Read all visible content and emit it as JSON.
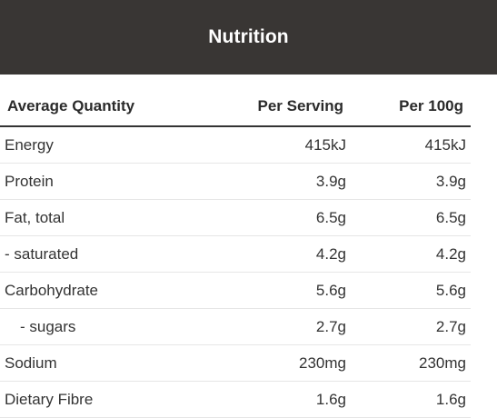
{
  "header": {
    "title": "Nutrition"
  },
  "columns": {
    "name": "Average Quantity",
    "per_serving": "Per Serving",
    "per_100g": "Per 100g"
  },
  "rows": [
    {
      "name": "Energy",
      "per_serving": "415kJ",
      "per_100g": "415kJ"
    },
    {
      "name": "Protein",
      "per_serving": "3.9g",
      "per_100g": "3.9g"
    },
    {
      "name": "Fat, total",
      "per_serving": "6.5g",
      "per_100g": "6.5g"
    },
    {
      "name": "- saturated",
      "per_serving": "4.2g",
      "per_100g": "4.2g"
    },
    {
      "name": "Carbohydrate",
      "per_serving": "5.6g",
      "per_100g": "5.6g"
    },
    {
      "name": "- sugars",
      "per_serving": "2.7g",
      "per_100g": "2.7g"
    },
    {
      "name": "Sodium",
      "per_serving": "230mg",
      "per_100g": "230mg"
    },
    {
      "name": "Dietary Fibre",
      "per_serving": "1.6g",
      "per_100g": "1.6g"
    }
  ]
}
